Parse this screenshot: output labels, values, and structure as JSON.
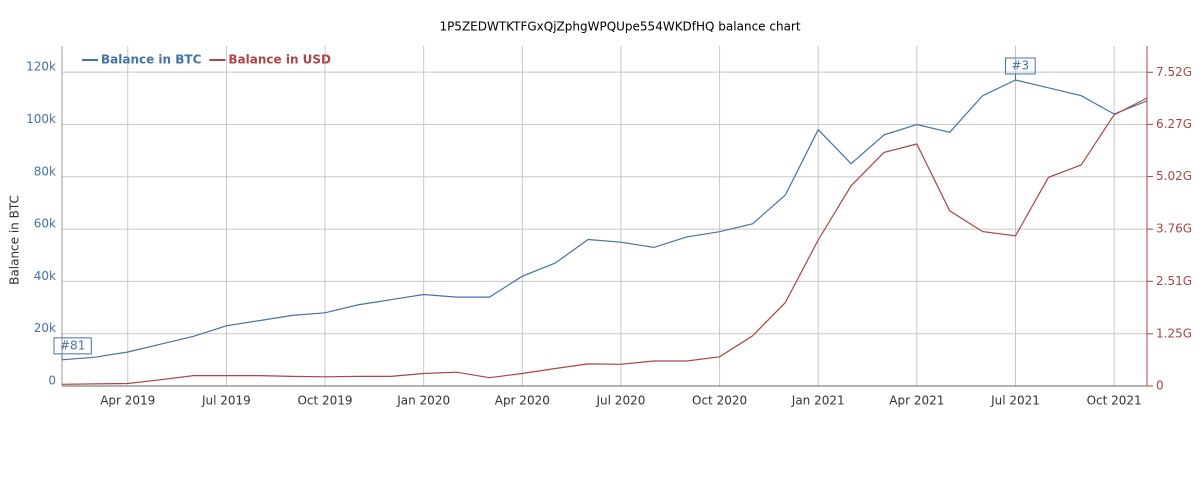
{
  "chart_data": {
    "type": "line",
    "title": "1P5ZEDWTKTFGxQjZphgWPQUpe554WKDfHQ balance chart",
    "y_label": "Balance in BTC",
    "x": [
      "2019-02",
      "2019-03",
      "2019-04",
      "2019-05",
      "2019-06",
      "2019-07",
      "2019-08",
      "2019-09",
      "2019-10",
      "2019-11",
      "2019-12",
      "2020-01",
      "2020-02",
      "2020-03",
      "2020-04",
      "2020-05",
      "2020-06",
      "2020-07",
      "2020-08",
      "2020-09",
      "2020-10",
      "2020-11",
      "2020-12",
      "2021-01",
      "2021-02",
      "2021-03",
      "2021-04",
      "2021-05",
      "2021-06",
      "2021-07",
      "2021-08",
      "2021-09",
      "2021-10",
      "2021-11"
    ],
    "series": [
      {
        "name": "Balance in BTC",
        "color": "#4572a7",
        "axis": "y",
        "values": [
          10000,
          11000,
          13000,
          16000,
          19000,
          23000,
          25000,
          27000,
          28000,
          31000,
          33000,
          35000,
          34000,
          34000,
          42000,
          47000,
          56000,
          55000,
          53000,
          57000,
          59000,
          62000,
          73000,
          98000,
          85000,
          96000,
          100000,
          97000,
          111000,
          117000,
          114000,
          111000,
          104000,
          109000
        ]
      },
      {
        "name": "Balance in USD",
        "color": "#aa4643",
        "axis": "y2",
        "values": [
          40000000,
          50000000,
          60000000,
          150000000,
          250000000,
          250000000,
          250000000,
          230000000,
          220000000,
          230000000,
          230000000,
          300000000,
          330000000,
          200000000,
          300000000,
          420000000,
          530000000,
          520000000,
          600000000,
          600000000,
          700000000,
          1200000000,
          2000000000,
          3500000000,
          4800000000,
          5600000000,
          5800000000,
          4200000000,
          3700000000,
          3600000000,
          5000000000,
          5300000000,
          6500000000,
          6900000000
        ]
      }
    ],
    "xlim": [
      "2019-02",
      "2021-11"
    ],
    "xticks": [
      {
        "value": "2019-04",
        "label": "Apr 2019"
      },
      {
        "value": "2019-07",
        "label": "Jul 2019"
      },
      {
        "value": "2019-10",
        "label": "Oct 2019"
      },
      {
        "value": "2020-01",
        "label": "Jan 2020"
      },
      {
        "value": "2020-04",
        "label": "Apr 2020"
      },
      {
        "value": "2020-07",
        "label": "Jul 2020"
      },
      {
        "value": "2020-10",
        "label": "Oct 2020"
      },
      {
        "value": "2021-01",
        "label": "Jan 2021"
      },
      {
        "value": "2021-04",
        "label": "Apr 2021"
      },
      {
        "value": "2021-07",
        "label": "Jul 2021"
      },
      {
        "value": "2021-10",
        "label": "Oct 2021"
      }
    ],
    "ylim": [
      0,
      130000
    ],
    "yticks": [
      0,
      {
        "value": 20000,
        "label": "20k"
      },
      {
        "value": 40000,
        "label": "40k"
      },
      {
        "value": 60000,
        "label": "60k"
      },
      {
        "value": 80000,
        "label": "80k"
      },
      {
        "value": 100000,
        "label": "100k"
      },
      {
        "value": 120000,
        "label": "120k"
      }
    ],
    "y2lim": [
      0,
      8150000000
    ],
    "y2ticks": [
      0,
      {
        "value": 1250000000,
        "label": "1.25G"
      },
      {
        "value": 2510000000,
        "label": "2.51G"
      },
      {
        "value": 3760000000,
        "label": "3.76G"
      },
      {
        "value": 5020000000,
        "label": "5.02G"
      },
      {
        "value": 6270000000,
        "label": "6.27G"
      },
      {
        "value": 7520000000,
        "label": "7.52G"
      }
    ],
    "annotations": [
      {
        "text": "#81",
        "x": "2019-02"
      },
      {
        "text": "#3",
        "x": "2021-07"
      }
    ],
    "grid": true,
    "legend": "top-left"
  }
}
